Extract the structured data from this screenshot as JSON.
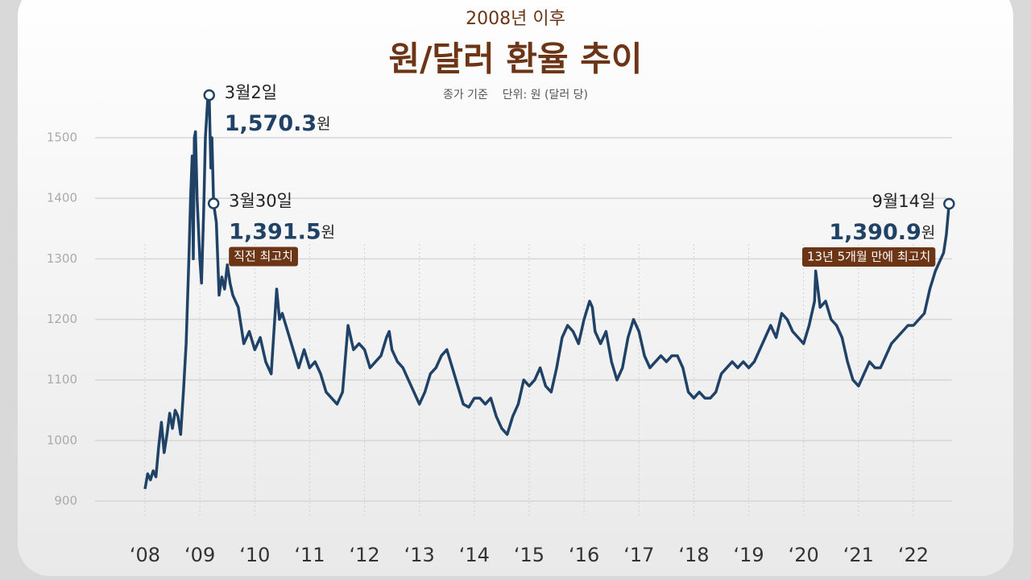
{
  "chart_data": {
    "type": "line",
    "kicker": "2008년 이후",
    "title": "원/달러 환율 추이",
    "subtitle": "종가 기준    단위: 원 (달러 당)",
    "color": "#1f4266",
    "xlim": [
      2008,
      2022
    ],
    "ylim": [
      900,
      1500
    ],
    "yticks": [
      900,
      1000,
      1100,
      1200,
      1300,
      1400,
      1500
    ],
    "xticks": [
      {
        "value": 2008,
        "label": "‘08"
      },
      {
        "value": 2009,
        "label": "‘09"
      },
      {
        "value": 2010,
        "label": "‘10"
      },
      {
        "value": 2011,
        "label": "‘11"
      },
      {
        "value": 2012,
        "label": "‘12"
      },
      {
        "value": 2013,
        "label": "‘13"
      },
      {
        "value": 2014,
        "label": "‘14"
      },
      {
        "value": 2015,
        "label": "‘15"
      },
      {
        "value": 2016,
        "label": "‘16"
      },
      {
        "value": 2017,
        "label": "‘17"
      },
      {
        "value": 2018,
        "label": "‘18"
      },
      {
        "value": 2019,
        "label": "‘19"
      },
      {
        "value": 2020,
        "label": "‘20"
      },
      {
        "value": 2021,
        "label": "‘21"
      },
      {
        "value": 2022,
        "label": "‘22"
      }
    ],
    "grid": true,
    "x": [
      2008.0,
      2008.05,
      2008.1,
      2008.15,
      2008.2,
      2008.25,
      2008.3,
      2008.35,
      2008.4,
      2008.45,
      2008.5,
      2008.55,
      2008.6,
      2008.65,
      2008.7,
      2008.75,
      2008.8,
      2008.83,
      2008.86,
      2008.88,
      2008.9,
      2008.92,
      2008.95,
      2009.0,
      2009.03,
      2009.07,
      2009.1,
      2009.14,
      2009.17,
      2009.2,
      2009.22,
      2009.25,
      2009.3,
      2009.35,
      2009.4,
      2009.45,
      2009.5,
      2009.55,
      2009.6,
      2009.7,
      2009.8,
      2009.9,
      2010.0,
      2010.1,
      2010.2,
      2010.3,
      2010.4,
      2010.45,
      2010.5,
      2010.6,
      2010.7,
      2010.8,
      2010.9,
      2011.0,
      2011.1,
      2011.2,
      2011.3,
      2011.4,
      2011.5,
      2011.6,
      2011.7,
      2011.8,
      2011.9,
      2012.0,
      2012.1,
      2012.2,
      2012.3,
      2012.4,
      2012.45,
      2012.5,
      2012.6,
      2012.7,
      2012.8,
      2012.9,
      2013.0,
      2013.1,
      2013.2,
      2013.3,
      2013.4,
      2013.5,
      2013.6,
      2013.7,
      2013.8,
      2013.9,
      2014.0,
      2014.1,
      2014.2,
      2014.3,
      2014.4,
      2014.5,
      2014.6,
      2014.7,
      2014.8,
      2014.9,
      2015.0,
      2015.1,
      2015.2,
      2015.3,
      2015.4,
      2015.5,
      2015.6,
      2015.7,
      2015.8,
      2015.9,
      2016.0,
      2016.1,
      2016.15,
      2016.2,
      2016.3,
      2016.4,
      2016.5,
      2016.6,
      2016.7,
      2016.8,
      2016.9,
      2017.0,
      2017.1,
      2017.2,
      2017.3,
      2017.4,
      2017.5,
      2017.6,
      2017.7,
      2017.8,
      2017.9,
      2018.0,
      2018.1,
      2018.2,
      2018.3,
      2018.4,
      2018.5,
      2018.6,
      2018.7,
      2018.8,
      2018.9,
      2019.0,
      2019.1,
      2019.2,
      2019.3,
      2019.4,
      2019.5,
      2019.6,
      2019.7,
      2019.8,
      2019.9,
      2020.0,
      2020.1,
      2020.2,
      2020.22,
      2020.3,
      2020.4,
      2020.5,
      2020.6,
      2020.7,
      2020.8,
      2020.9,
      2021.0,
      2021.1,
      2021.2,
      2021.3,
      2021.4,
      2021.5,
      2021.6,
      2021.7,
      2021.8,
      2021.9,
      2022.0,
      2022.1,
      2022.2,
      2022.3,
      2022.4,
      2022.5,
      2022.55,
      2022.6,
      2022.65
    ],
    "values": [
      920,
      945,
      935,
      950,
      940,
      990,
      1030,
      980,
      1010,
      1045,
      1020,
      1050,
      1040,
      1010,
      1080,
      1160,
      1300,
      1400,
      1470,
      1300,
      1500,
      1510,
      1400,
      1300,
      1260,
      1380,
      1500,
      1560,
      1570.3,
      1450,
      1500,
      1391.5,
      1360,
      1240,
      1270,
      1250,
      1290,
      1260,
      1240,
      1220,
      1160,
      1180,
      1150,
      1170,
      1130,
      1110,
      1250,
      1200,
      1210,
      1180,
      1150,
      1120,
      1150,
      1120,
      1130,
      1110,
      1080,
      1070,
      1060,
      1080,
      1190,
      1150,
      1160,
      1150,
      1120,
      1130,
      1140,
      1170,
      1180,
      1150,
      1130,
      1120,
      1100,
      1080,
      1060,
      1080,
      1110,
      1120,
      1140,
      1150,
      1120,
      1090,
      1060,
      1055,
      1070,
      1070,
      1060,
      1070,
      1040,
      1020,
      1010,
      1040,
      1060,
      1100,
      1090,
      1100,
      1120,
      1090,
      1080,
      1120,
      1170,
      1190,
      1180,
      1160,
      1200,
      1230,
      1220,
      1180,
      1160,
      1180,
      1130,
      1100,
      1120,
      1170,
      1200,
      1180,
      1140,
      1120,
      1130,
      1140,
      1130,
      1140,
      1140,
      1120,
      1080,
      1070,
      1080,
      1070,
      1070,
      1080,
      1110,
      1120,
      1130,
      1120,
      1130,
      1120,
      1130,
      1150,
      1170,
      1190,
      1170,
      1210,
      1200,
      1180,
      1170,
      1160,
      1190,
      1230,
      1280,
      1220,
      1230,
      1200,
      1190,
      1170,
      1130,
      1100,
      1090,
      1110,
      1130,
      1120,
      1120,
      1140,
      1160,
      1170,
      1180,
      1190,
      1190,
      1200,
      1210,
      1250,
      1280,
      1300,
      1310,
      1340,
      1390.9
    ],
    "annotations": [
      {
        "date": "3월2일",
        "x": 2009.17,
        "y": 1570.3,
        "label": "1,570.3",
        "unit": "원"
      },
      {
        "date": "3월30일",
        "x": 2009.25,
        "y": 1391.5,
        "label": "1,391.5",
        "unit": "원",
        "note": "직전 최고치"
      },
      {
        "date": "9월14일",
        "x": 2022.65,
        "y": 1390.9,
        "label": "1,390.9",
        "unit": "원",
        "note": "13년 5개월 만에 최고치"
      }
    ]
  }
}
